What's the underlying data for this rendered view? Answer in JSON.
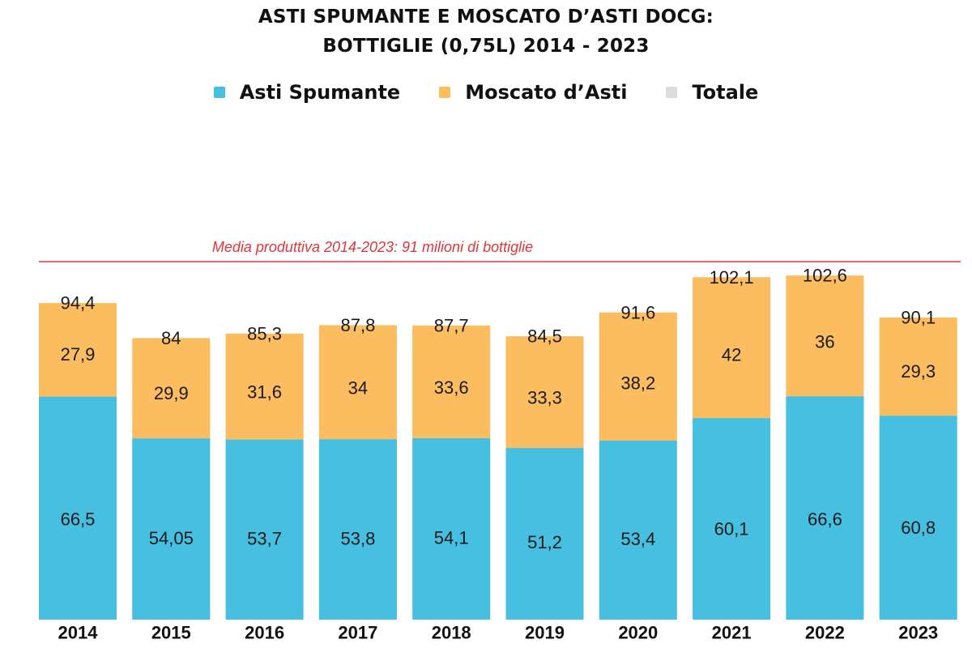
{
  "chart_data": {
    "type": "bar",
    "stacked": true,
    "title": [
      "ASTI SPUMANTE E MOSCATO D’ASTI DOCG:",
      "BOTTIGLIE (0,75L) 2014 - 2023"
    ],
    "categories": [
      "2014",
      "2015",
      "2016",
      "2017",
      "2018",
      "2019",
      "2020",
      "2021",
      "2022",
      "2023"
    ],
    "series": [
      {
        "name": "Asti Spumante",
        "color": "#47bfe0",
        "values": [
          66.5,
          54.05,
          53.7,
          53.8,
          54.1,
          51.2,
          53.4,
          60.1,
          66.6,
          60.8
        ],
        "labels": [
          "66,5",
          "54,05",
          "53,7",
          "53,8",
          "54,1",
          "51,2",
          "53,4",
          "60,1",
          "66,6",
          "60,8"
        ]
      },
      {
        "name": "Moscato d’Asti",
        "color": "#fbbd5f",
        "values": [
          27.9,
          29.9,
          31.6,
          34,
          33.6,
          33.3,
          38.2,
          42,
          36,
          29.3
        ],
        "labels": [
          "27,9",
          "29,9",
          "31,6",
          "34",
          "33,6",
          "33,3",
          "38,2",
          "42",
          "36",
          "29,3"
        ]
      },
      {
        "name": "Totale",
        "color": "#dcdcdc",
        "values": [
          94.4,
          84,
          85.3,
          87.8,
          87.7,
          84.5,
          91.6,
          102.1,
          102.6,
          90.1
        ],
        "labels": [
          "94,4",
          "84",
          "85,3",
          "87,8",
          "87,7",
          "84,5",
          "91,6",
          "102,1",
          "102,6",
          "90,1"
        ]
      }
    ],
    "reference_line": {
      "value": 91,
      "label": "Media produttiva 2014-2023: 91 milioni di bottiglie",
      "color": "#e0363a"
    },
    "legend_position": "top-center",
    "xlabel": "",
    "ylabel": "",
    "grid": false
  }
}
